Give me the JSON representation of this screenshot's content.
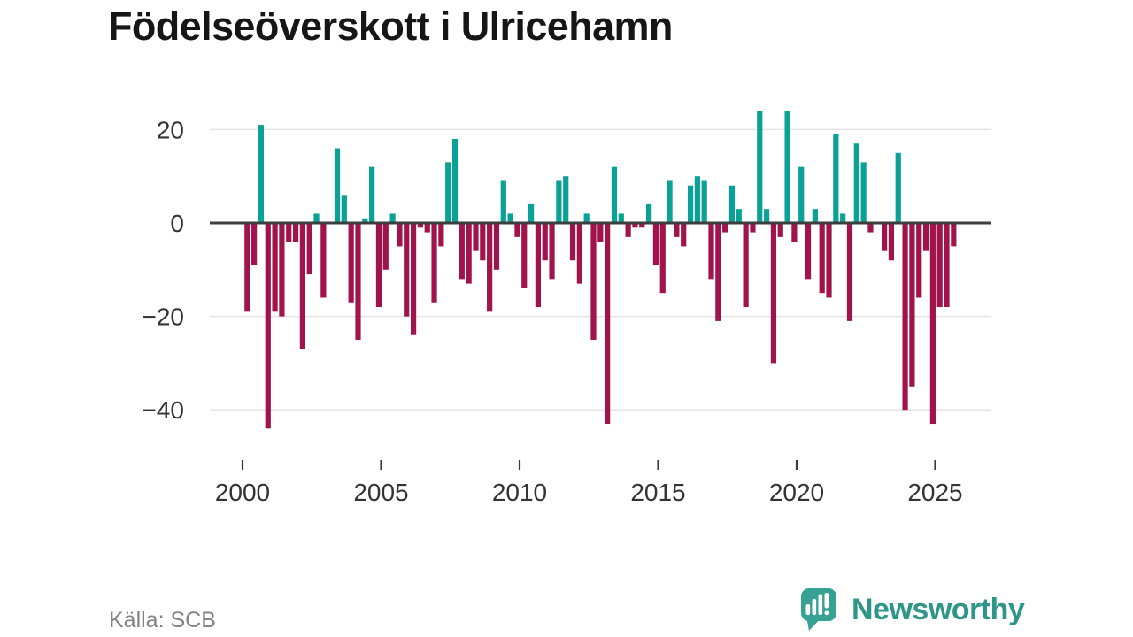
{
  "title": "Födelseöverskott i Ulricehamn",
  "source": "Källa: SCB",
  "branding": {
    "name": "Newsworthy",
    "logo_icon": "bar-chart-speech-bubble"
  },
  "colors": {
    "positive_bar": "#0aa196",
    "negative_bar": "#a0134b",
    "zero_line": "#3d3d3d",
    "gridline": "#e4e4e4",
    "axis_text": "#333333",
    "tick_mark": "#3c3c3c",
    "title_text": "#161616",
    "source_text": "#818181",
    "brand_teal": "#2e9689",
    "logo_box": "#37a293"
  },
  "chart_data": {
    "type": "bar",
    "title": "Födelseöverskott i Ulricehamn",
    "x_unit": "quarter",
    "grid": "horizontal",
    "legend": "none",
    "ylim": [
      -47,
      27
    ],
    "y_ticks": [
      20,
      0,
      -20,
      -40
    ],
    "y_tick_labels": [
      "20",
      "0",
      "−20",
      "−40"
    ],
    "x_tick_labels": [
      "2000",
      "2005",
      "2010",
      "2015",
      "2020",
      "2025"
    ],
    "series": [
      {
        "name": "Födelseöverskott",
        "x": [
          "2000Q1",
          "2000Q2",
          "2000Q3",
          "2000Q4",
          "2001Q1",
          "2001Q2",
          "2001Q3",
          "2001Q4",
          "2002Q1",
          "2002Q2",
          "2002Q3",
          "2002Q4",
          "2003Q1",
          "2003Q2",
          "2003Q3",
          "2003Q4",
          "2004Q1",
          "2004Q2",
          "2004Q3",
          "2004Q4",
          "2005Q1",
          "2005Q2",
          "2005Q3",
          "2005Q4",
          "2006Q1",
          "2006Q2",
          "2006Q3",
          "2006Q4",
          "2007Q1",
          "2007Q2",
          "2007Q3",
          "2007Q4",
          "2008Q1",
          "2008Q2",
          "2008Q3",
          "2008Q4",
          "2009Q1",
          "2009Q2",
          "2009Q3",
          "2009Q4",
          "2010Q1",
          "2010Q2",
          "2010Q3",
          "2010Q4",
          "2011Q1",
          "2011Q2",
          "2011Q3",
          "2011Q4",
          "2012Q1",
          "2012Q2",
          "2012Q3",
          "2012Q4",
          "2013Q1",
          "2013Q2",
          "2013Q3",
          "2013Q4",
          "2014Q1",
          "2014Q2",
          "2014Q3",
          "2014Q4",
          "2015Q1",
          "2015Q2",
          "2015Q3",
          "2015Q4",
          "2016Q1",
          "2016Q2",
          "2016Q3",
          "2016Q4",
          "2017Q1",
          "2017Q2",
          "2017Q3",
          "2017Q4",
          "2018Q1",
          "2018Q2",
          "2018Q3",
          "2018Q4",
          "2019Q1",
          "2019Q2",
          "2019Q3",
          "2019Q4",
          "2020Q1",
          "2020Q2",
          "2020Q3",
          "2020Q4",
          "2021Q1",
          "2021Q2",
          "2021Q3",
          "2021Q4",
          "2022Q1",
          "2022Q2",
          "2022Q3",
          "2022Q4",
          "2023Q1",
          "2023Q2",
          "2023Q3",
          "2023Q4",
          "2024Q1",
          "2024Q2",
          "2024Q3",
          "2024Q4",
          "2025Q1",
          "2025Q2",
          "2025Q3"
        ],
        "values": [
          -19,
          -9,
          21,
          -44,
          -19,
          -20,
          -4,
          -4,
          -27,
          -11,
          2,
          -16,
          0,
          16,
          6,
          -17,
          -25,
          1,
          12,
          -18,
          -10,
          2,
          -5,
          -20,
          -24,
          -1,
          -2,
          -17,
          -5,
          13,
          18,
          -12,
          -13,
          -6,
          -8,
          -19,
          -10,
          9,
          2,
          -3,
          -14,
          4,
          -18,
          -8,
          -12,
          9,
          10,
          -8,
          -13,
          2,
          -25,
          -4,
          -43,
          12,
          2,
          -3,
          -1,
          -1,
          4,
          -9,
          -15,
          9,
          -3,
          -5,
          8,
          10,
          9,
          -12,
          -21,
          -2,
          8,
          3,
          -18,
          -2,
          24,
          3,
          -30,
          -3,
          24,
          -4,
          12,
          -12,
          3,
          -15,
          -16,
          19,
          2,
          -21,
          17,
          13,
          -2,
          0,
          -6,
          -8,
          15,
          -40,
          -35,
          -16,
          -6,
          -43,
          -18,
          -18,
          -5
        ]
      }
    ]
  }
}
